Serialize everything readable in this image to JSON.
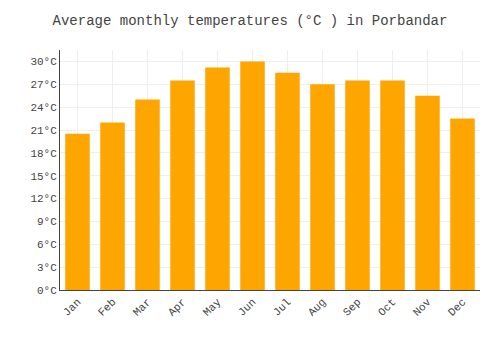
{
  "chart_data": {
    "type": "bar",
    "title": "Average monthly temperatures (°C ) in Porbandar",
    "categories": [
      "Jan",
      "Feb",
      "Mar",
      "Apr",
      "May",
      "Jun",
      "Jul",
      "Aug",
      "Sep",
      "Oct",
      "Nov",
      "Dec"
    ],
    "values": [
      20.5,
      22.0,
      25.0,
      27.5,
      29.2,
      30.0,
      28.5,
      27.0,
      27.5,
      27.5,
      25.5,
      22.5
    ],
    "color": "#FFA500",
    "ylim": [
      0,
      31.5
    ],
    "yticks": [
      {
        "value": 0,
        "label": "0°C"
      },
      {
        "value": 3,
        "label": "3°C"
      },
      {
        "value": 6,
        "label": "6°C"
      },
      {
        "value": 9,
        "label": "9°C"
      },
      {
        "value": 12,
        "label": "12°C"
      },
      {
        "value": 15,
        "label": "15°C"
      },
      {
        "value": 18,
        "label": "18°C"
      },
      {
        "value": 21,
        "label": "21°C"
      },
      {
        "value": 24,
        "label": "24°C"
      },
      {
        "value": 27,
        "label": "27°C"
      },
      {
        "value": 30,
        "label": "30°C"
      }
    ],
    "grid": true
  }
}
